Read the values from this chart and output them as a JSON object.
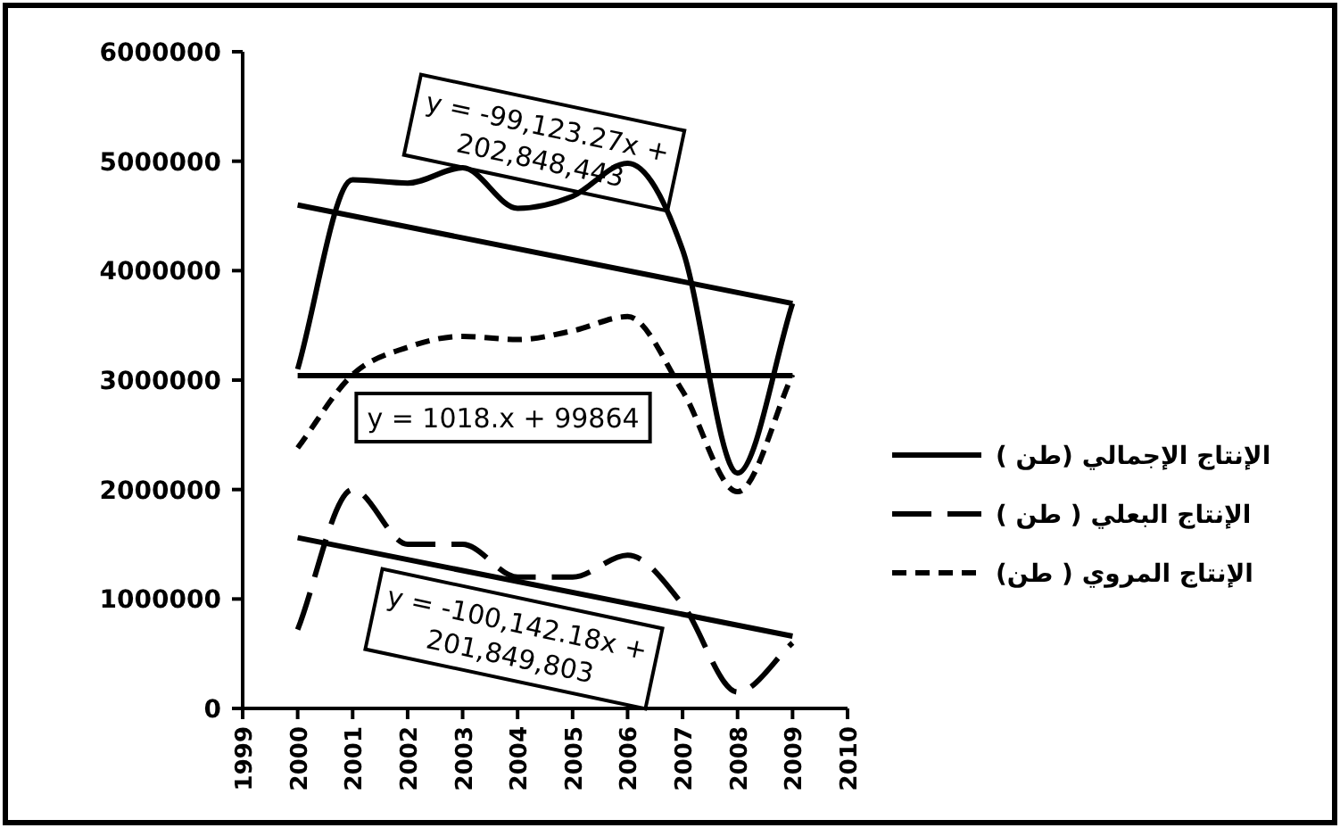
{
  "chart_data": {
    "type": "line",
    "xlim": [
      1999,
      2010
    ],
    "xticks": [
      1999,
      2000,
      2001,
      2002,
      2003,
      2004,
      2005,
      2006,
      2007,
      2008,
      2009,
      2010
    ],
    "ylim": [
      0,
      6000000
    ],
    "yticks": [
      0,
      1000000,
      2000000,
      3000000,
      4000000,
      5000000,
      6000000
    ],
    "grid": false,
    "legend": "right",
    "marker": "none",
    "x": [
      2000,
      2001,
      2002,
      2003,
      2004,
      2005,
      2006,
      2007,
      2008,
      2009
    ],
    "series": [
      {
        "name": "الإنتاج الإجمالي (طن )",
        "color": "#000000",
        "line_style": "solid",
        "values": [
          3100000,
          4830000,
          4800000,
          4940000,
          4570000,
          4680000,
          4980000,
          4190000,
          2150000,
          3700000
        ]
      },
      {
        "name": "الإنتاج البعلي ( طن )",
        "color": "#000000",
        "line_style": "dashed",
        "values": [
          720000,
          2000000,
          1500000,
          1500000,
          1200000,
          1200000,
          1400000,
          950000,
          150000,
          600000
        ]
      },
      {
        "name": "الإنتاج المروي ( طن)",
        "color": "#000000",
        "line_style": "dotted",
        "values": [
          2380000,
          3050000,
          3300000,
          3400000,
          3370000,
          3450000,
          3580000,
          2900000,
          1980000,
          3050000
        ]
      },
      {
        "type": "line",
        "color": "#000000",
        "line_style": "solid",
        "values": [
          4600000,
          null,
          null,
          null,
          null,
          null,
          null,
          null,
          null,
          3700000
        ]
      },
      {
        "type": "line",
        "color": "#000000",
        "line_style": "solid",
        "values": [
          3040000,
          null,
          null,
          null,
          null,
          null,
          null,
          null,
          null,
          3040000
        ]
      },
      {
        "type": "line",
        "color": "#000000",
        "line_style": "solid",
        "values": [
          1560000,
          null,
          null,
          null,
          null,
          null,
          null,
          null,
          null,
          660000
        ]
      }
    ],
    "annotations": [
      "y = -99,123.27x +\n202,848,443",
      "y = 1018.x + 99864",
      "y = -100,142.18x +\n201,849,803"
    ]
  }
}
